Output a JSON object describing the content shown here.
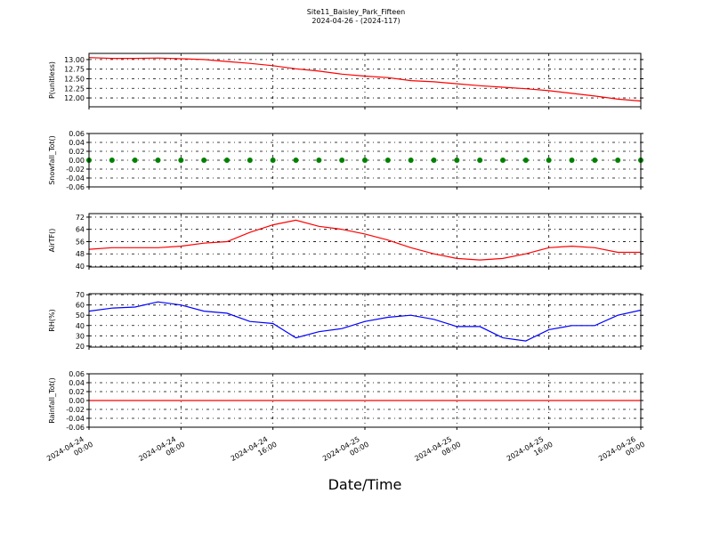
{
  "chart_data": [
    {
      "type": "line",
      "title": "Site11_Baisley_Park_Fifteen",
      "subtitle": "2024-04-26 - (2024-117)",
      "ylabel": "P(unitless)",
      "grid": true,
      "xlim": [
        "2024-04-24 00:00",
        "2024-04-26 00:00"
      ],
      "x": [
        "2024-04-24 00:00",
        "2024-04-24 02:00",
        "2024-04-24 04:00",
        "2024-04-24 06:00",
        "2024-04-24 08:00",
        "2024-04-24 10:00",
        "2024-04-24 12:00",
        "2024-04-24 14:00",
        "2024-04-24 16:00",
        "2024-04-24 18:00",
        "2024-04-24 20:00",
        "2024-04-24 22:00",
        "2024-04-25 00:00",
        "2024-04-25 02:00",
        "2024-04-25 04:00",
        "2024-04-25 06:00",
        "2024-04-25 08:00",
        "2024-04-25 10:00",
        "2024-04-25 12:00",
        "2024-04-25 14:00",
        "2024-04-25 16:00",
        "2024-04-25 18:00",
        "2024-04-25 20:00",
        "2024-04-25 22:00",
        "2024-04-26 00:00"
      ],
      "series": [
        {
          "color": "#ff0000",
          "values": [
            13.05,
            13.03,
            13.03,
            13.04,
            13.02,
            13.0,
            12.95,
            12.9,
            12.84,
            12.76,
            12.7,
            12.62,
            12.57,
            12.53,
            12.45,
            12.42,
            12.37,
            12.32,
            12.28,
            12.24,
            12.19,
            12.12,
            12.05,
            11.97,
            11.92
          ]
        }
      ],
      "ylim": [
        11.77,
        13.16
      ],
      "yticks": [
        {
          "value": 12,
          "label": "12.00"
        },
        {
          "value": 12.25,
          "label": "12.25"
        },
        {
          "value": 12.5,
          "label": "12.50"
        },
        {
          "value": 12.75,
          "label": "12.75"
        },
        {
          "value": 13,
          "label": "13.00"
        }
      ]
    },
    {
      "type": "scatter",
      "ylabel": "Snowfall_Tot()",
      "grid": true,
      "xlim": [
        "2024-04-24 00:00",
        "2024-04-26 00:00"
      ],
      "x": [
        "2024-04-24 00:00",
        "2024-04-24 02:00",
        "2024-04-24 04:00",
        "2024-04-24 06:00",
        "2024-04-24 08:00",
        "2024-04-24 10:00",
        "2024-04-24 12:00",
        "2024-04-24 14:00",
        "2024-04-24 16:00",
        "2024-04-24 18:00",
        "2024-04-24 20:00",
        "2024-04-24 22:00",
        "2024-04-25 00:00",
        "2024-04-25 02:00",
        "2024-04-25 04:00",
        "2024-04-25 06:00",
        "2024-04-25 08:00",
        "2024-04-25 10:00",
        "2024-04-25 12:00",
        "2024-04-25 14:00",
        "2024-04-25 16:00",
        "2024-04-25 18:00",
        "2024-04-25 20:00",
        "2024-04-25 22:00",
        "2024-04-26 00:00"
      ],
      "series": [
        {
          "color": "#008000",
          "values": [
            0,
            0,
            0,
            0,
            0,
            0,
            0,
            0,
            0,
            0,
            0,
            0,
            0,
            0,
            0,
            0,
            0,
            0,
            0,
            0,
            0,
            0,
            0,
            0,
            0
          ]
        }
      ],
      "ylim": [
        -0.06,
        0.06
      ],
      "yticks": [
        {
          "value": -0.06,
          "label": "-0.06"
        },
        {
          "value": -0.04,
          "label": "-0.04"
        },
        {
          "value": -0.02,
          "label": "-0.02"
        },
        {
          "value": 0,
          "label": "0.00"
        },
        {
          "value": 0.02,
          "label": "0.02"
        },
        {
          "value": 0.04,
          "label": "0.04"
        },
        {
          "value": 0.06,
          "label": "0.06"
        }
      ]
    },
    {
      "type": "line",
      "ylabel": "AirTF()",
      "grid": true,
      "xlim": [
        "2024-04-24 00:00",
        "2024-04-26 00:00"
      ],
      "x": [
        "2024-04-24 00:00",
        "2024-04-24 02:00",
        "2024-04-24 04:00",
        "2024-04-24 06:00",
        "2024-04-24 08:00",
        "2024-04-24 10:00",
        "2024-04-24 12:00",
        "2024-04-24 14:00",
        "2024-04-24 16:00",
        "2024-04-24 18:00",
        "2024-04-24 20:00",
        "2024-04-24 22:00",
        "2024-04-25 00:00",
        "2024-04-25 02:00",
        "2024-04-25 04:00",
        "2024-04-25 06:00",
        "2024-04-25 08:00",
        "2024-04-25 10:00",
        "2024-04-25 12:00",
        "2024-04-25 14:00",
        "2024-04-25 16:00",
        "2024-04-25 18:00",
        "2024-04-25 20:00",
        "2024-04-25 22:00",
        "2024-04-26 00:00"
      ],
      "series": [
        {
          "color": "#ff0000",
          "values": [
            51,
            52,
            52,
            52,
            53,
            55,
            56,
            62,
            67,
            70,
            66,
            64,
            61,
            57,
            52,
            48,
            45,
            44,
            45,
            48,
            52,
            53,
            52,
            49,
            49
          ]
        }
      ],
      "ylim": [
        39.4,
        74.3
      ],
      "yticks": [
        40,
        48,
        56,
        64,
        72
      ]
    },
    {
      "type": "line",
      "ylabel": "RH(%)",
      "grid": true,
      "xlim": [
        "2024-04-24 00:00",
        "2024-04-26 00:00"
      ],
      "x": [
        "2024-04-24 00:00",
        "2024-04-24 02:00",
        "2024-04-24 04:00",
        "2024-04-24 06:00",
        "2024-04-24 08:00",
        "2024-04-24 10:00",
        "2024-04-24 12:00",
        "2024-04-24 14:00",
        "2024-04-24 16:00",
        "2024-04-24 18:00",
        "2024-04-24 20:00",
        "2024-04-24 22:00",
        "2024-04-25 00:00",
        "2024-04-25 02:00",
        "2024-04-25 04:00",
        "2024-04-25 06:00",
        "2024-04-25 08:00",
        "2024-04-25 10:00",
        "2024-04-25 12:00",
        "2024-04-25 14:00",
        "2024-04-25 16:00",
        "2024-04-25 18:00",
        "2024-04-25 20:00",
        "2024-04-25 22:00",
        "2024-04-26 00:00"
      ],
      "series": [
        {
          "color": "#0000ff",
          "values": [
            54,
            57,
            58,
            63,
            60,
            54,
            52,
            44,
            42,
            28,
            34,
            37,
            44,
            48,
            50,
            46,
            39,
            39,
            28,
            25,
            36,
            40,
            40,
            50,
            55
          ]
        }
      ],
      "ylim": [
        19,
        71
      ],
      "yticks": [
        20,
        30,
        40,
        50,
        60,
        70
      ]
    },
    {
      "type": "line",
      "ylabel": "Rainfall_Tot()",
      "xlabel": "Date/Time",
      "grid": true,
      "xlim": [
        "2024-04-24 00:00",
        "2024-04-26 00:00"
      ],
      "x": [
        "2024-04-24 00:00",
        "2024-04-24 02:00",
        "2024-04-24 04:00",
        "2024-04-24 06:00",
        "2024-04-24 08:00",
        "2024-04-24 10:00",
        "2024-04-24 12:00",
        "2024-04-24 14:00",
        "2024-04-24 16:00",
        "2024-04-24 18:00",
        "2024-04-24 20:00",
        "2024-04-24 22:00",
        "2024-04-25 00:00",
        "2024-04-25 02:00",
        "2024-04-25 04:00",
        "2024-04-25 06:00",
        "2024-04-25 08:00",
        "2024-04-25 10:00",
        "2024-04-25 12:00",
        "2024-04-25 14:00",
        "2024-04-25 16:00",
        "2024-04-25 18:00",
        "2024-04-25 20:00",
        "2024-04-25 22:00",
        "2024-04-26 00:00"
      ],
      "series": [
        {
          "color": "#ff0000",
          "values": [
            0,
            0,
            0,
            0,
            0,
            0,
            0,
            0,
            0,
            0,
            0,
            0,
            0,
            0,
            0,
            0,
            0,
            0,
            0,
            0,
            0,
            0,
            0,
            0,
            0
          ]
        }
      ],
      "ylim": [
        -0.06,
        0.06
      ],
      "yticks": [
        {
          "value": -0.06,
          "label": "-0.06"
        },
        {
          "value": -0.04,
          "label": "-0.04"
        },
        {
          "value": -0.02,
          "label": "-0.02"
        },
        {
          "value": 0,
          "label": "0.00"
        },
        {
          "value": 0.02,
          "label": "0.02"
        },
        {
          "value": 0.04,
          "label": "0.04"
        },
        {
          "value": 0.06,
          "label": "0.06"
        }
      ],
      "xticks": [
        {
          "value": "2024-04-24 00:00",
          "label": "2024-04-24\n00:00"
        },
        {
          "value": "2024-04-24 08:00",
          "label": "2024-04-24\n08:00"
        },
        {
          "value": "2024-04-24 16:00",
          "label": "2024-04-24\n16:00"
        },
        {
          "value": "2024-04-25 00:00",
          "label": "2024-04-25\n00:00"
        },
        {
          "value": "2024-04-25 08:00",
          "label": "2024-04-25\n08:00"
        },
        {
          "value": "2024-04-25 16:00",
          "label": "2024-04-25\n16:00"
        },
        {
          "value": "2024-04-26 00:00",
          "label": "2024-04-26\n00:00"
        }
      ]
    }
  ]
}
